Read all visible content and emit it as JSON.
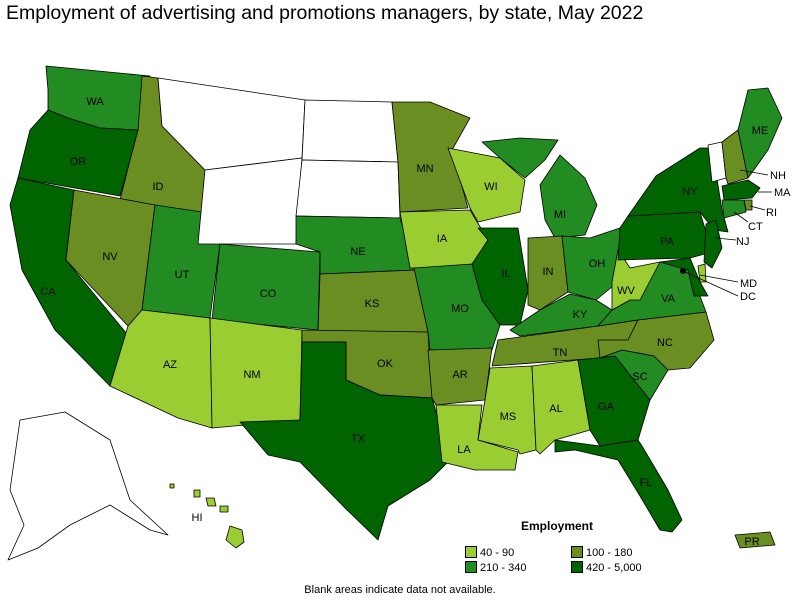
{
  "title": "Employment of advertising and promotions managers, by state, May 2022",
  "footnote": "Blank areas indicate data not available.",
  "legend": {
    "title": "Employment",
    "items": [
      {
        "label": "40 - 90",
        "color": "#9acd32"
      },
      {
        "label": "100 - 180",
        "color": "#6b8e23"
      },
      {
        "label": "210 - 340",
        "color": "#228b22"
      },
      {
        "label": "420 - 5,000",
        "color": "#006400"
      }
    ]
  },
  "colors": {
    "bin_40_90": "#9acd32",
    "bin_100_180": "#6b8e23",
    "bin_210_340": "#228b22",
    "bin_420_5000": "#006400",
    "no_data": "#ffffff"
  },
  "states": {
    "WA": {
      "label": "WA",
      "bin": "210 - 340"
    },
    "OR": {
      "label": "OR",
      "bin": "420 - 5,000"
    },
    "CA": {
      "label": "CA",
      "bin": "420 - 5,000"
    },
    "ID": {
      "label": "ID",
      "bin": "100 - 180"
    },
    "NV": {
      "label": "NV",
      "bin": "100 - 180"
    },
    "UT": {
      "label": "UT",
      "bin": "210 - 340"
    },
    "AZ": {
      "label": "AZ",
      "bin": "40 - 90"
    },
    "MT": {
      "label": "",
      "bin": null
    },
    "WY": {
      "label": "",
      "bin": null
    },
    "CO": {
      "label": "CO",
      "bin": "210 - 340"
    },
    "NM": {
      "label": "NM",
      "bin": "40 - 90"
    },
    "ND": {
      "label": "",
      "bin": null
    },
    "SD": {
      "label": "",
      "bin": null
    },
    "NE": {
      "label": "NE",
      "bin": "210 - 340"
    },
    "KS": {
      "label": "KS",
      "bin": "100 - 180"
    },
    "OK": {
      "label": "OK",
      "bin": "100 - 180"
    },
    "TX": {
      "label": "TX",
      "bin": "420 - 5,000"
    },
    "MN": {
      "label": "MN",
      "bin": "100 - 180"
    },
    "IA": {
      "label": "IA",
      "bin": "40 - 90"
    },
    "MO": {
      "label": "MO",
      "bin": "210 - 340"
    },
    "AR": {
      "label": "AR",
      "bin": "100 - 180"
    },
    "LA": {
      "label": "LA",
      "bin": "40 - 90"
    },
    "WI": {
      "label": "WI",
      "bin": "40 - 90"
    },
    "IL": {
      "label": "IL",
      "bin": "420 - 5,000"
    },
    "MI": {
      "label": "MI",
      "bin": "210 - 340"
    },
    "IN": {
      "label": "IN",
      "bin": "100 - 180"
    },
    "OH": {
      "label": "OH",
      "bin": "210 - 340"
    },
    "KY": {
      "label": "KY",
      "bin": "210 - 340"
    },
    "TN": {
      "label": "TN",
      "bin": "100 - 180"
    },
    "MS": {
      "label": "MS",
      "bin": "40 - 90"
    },
    "AL": {
      "label": "AL",
      "bin": "40 - 90"
    },
    "GA": {
      "label": "GA",
      "bin": "420 - 5,000"
    },
    "FL": {
      "label": "FL",
      "bin": "420 - 5,000"
    },
    "SC": {
      "label": "SC",
      "bin": "210 - 340"
    },
    "NC": {
      "label": "NC",
      "bin": "100 - 180"
    },
    "VA": {
      "label": "VA",
      "bin": "210 - 340"
    },
    "WV": {
      "label": "WV",
      "bin": "40 - 90"
    },
    "PA": {
      "label": "PA",
      "bin": "420 - 5,000"
    },
    "NY": {
      "label": "NY",
      "bin": "420 - 5,000"
    },
    "VT": {
      "label": "",
      "bin": null
    },
    "NH": {
      "label": "NH",
      "bin": "100 - 180"
    },
    "ME": {
      "label": "ME",
      "bin": "210 - 340"
    },
    "MA": {
      "label": "MA",
      "bin": "420 - 5,000"
    },
    "RI": {
      "label": "RI",
      "bin": "100 - 180"
    },
    "CT": {
      "label": "CT",
      "bin": "210 - 340"
    },
    "NJ": {
      "label": "NJ",
      "bin": "420 - 5,000"
    },
    "DE": {
      "label": "",
      "bin": "40 - 90"
    },
    "MD": {
      "label": "MD",
      "bin": "420 - 5,000"
    },
    "DC": {
      "label": "DC",
      "bin": "420 - 5,000"
    },
    "AK": {
      "label": "",
      "bin": null
    },
    "HI": {
      "label": "HI",
      "bin": "40 - 90"
    },
    "PR": {
      "label": "PR",
      "bin": "100 - 180"
    }
  }
}
